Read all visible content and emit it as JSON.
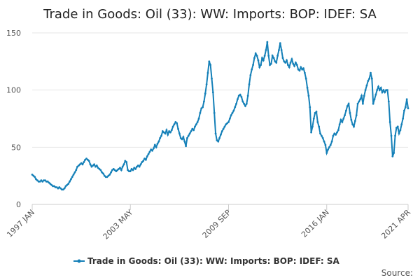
{
  "chart_data": {
    "type": "line",
    "title": "Trade in Goods: Oil (33): WW: Imports: BOP: IDEF: SA",
    "source_label": "Source:",
    "categories": [
      "1997 JAN",
      null,
      null,
      null,
      null,
      null,
      null,
      null,
      null,
      null,
      null,
      null,
      null,
      null,
      null,
      null,
      null,
      null,
      null,
      null,
      null,
      null,
      null,
      null,
      null,
      null,
      null,
      null,
      null,
      null,
      null,
      null,
      null,
      null,
      null,
      null,
      null,
      null,
      null,
      null,
      null,
      null,
      null,
      null,
      null,
      null,
      null,
      null,
      null,
      null,
      null,
      null,
      null,
      null,
      null,
      null,
      null,
      null,
      null,
      null,
      null,
      null,
      null,
      null,
      null,
      null,
      null,
      null,
      null,
      null,
      null,
      null,
      null,
      null,
      null,
      null,
      "2003 MAY",
      null,
      null,
      null,
      null,
      null,
      null,
      null,
      null,
      null,
      null,
      null,
      null,
      null,
      null,
      null,
      null,
      null,
      null,
      null,
      null,
      null,
      null,
      null,
      null,
      null,
      null,
      null,
      null,
      null,
      null,
      null,
      null,
      null,
      null,
      null,
      null,
      null,
      null,
      null,
      null,
      null,
      null,
      null,
      null,
      null,
      null,
      null,
      null,
      null,
      null,
      null,
      null,
      null,
      null,
      null,
      null,
      null,
      null,
      null,
      null,
      null,
      null,
      null,
      null,
      null,
      null,
      null,
      null,
      null,
      null,
      null,
      null,
      null,
      null,
      null,
      "2009 SEP",
      null,
      null,
      null,
      null,
      null,
      null,
      null,
      null,
      null,
      null,
      null,
      null,
      null,
      null,
      null,
      null,
      null,
      null,
      null,
      null,
      null,
      null,
      null,
      null,
      null,
      null,
      null,
      null,
      null,
      null,
      null,
      null,
      null,
      null,
      null,
      null,
      null,
      null,
      null,
      null,
      null,
      null,
      null,
      null,
      null,
      null,
      null,
      null,
      null,
      null,
      null,
      null,
      null,
      null,
      null,
      null,
      null,
      null,
      null,
      null,
      null,
      null,
      null,
      null,
      null,
      null,
      null,
      null,
      null,
      null,
      null,
      null,
      null,
      null,
      null,
      "2016 JAN",
      null,
      null,
      null,
      null,
      null,
      null,
      null,
      null,
      null,
      null,
      null,
      null,
      null,
      null,
      null,
      null,
      null,
      null,
      null,
      null,
      null,
      null,
      null,
      null,
      null,
      null,
      null,
      null,
      null,
      null,
      null,
      null,
      null,
      null,
      null,
      null,
      null,
      null,
      null,
      null,
      null,
      null,
      null,
      null,
      null,
      null,
      null,
      null,
      null,
      null,
      null,
      null,
      null,
      null,
      null,
      null,
      null,
      null,
      null,
      null,
      null,
      null,
      "2021 APR"
    ],
    "series": [
      {
        "name": "Trade in Goods: Oil (33): WW: Imports: BOP: IDEF: SA",
        "color": "#1580b8",
        "values": [
          26,
          25,
          24,
          22,
          21,
          20,
          20,
          21,
          20,
          21,
          21,
          20,
          20,
          19,
          18,
          17,
          16,
          16,
          15,
          15,
          14,
          15,
          14,
          13,
          13,
          14,
          16,
          17,
          18,
          20,
          22,
          24,
          26,
          28,
          30,
          33,
          34,
          35,
          36,
          35,
          37,
          39,
          40,
          39,
          38,
          35,
          33,
          34,
          35,
          33,
          34,
          32,
          31,
          30,
          28,
          27,
          25,
          24,
          24,
          25,
          26,
          28,
          30,
          31,
          30,
          29,
          30,
          31,
          32,
          30,
          33,
          35,
          38,
          37,
          30,
          29,
          29,
          31,
          30,
          32,
          31,
          33,
          34,
          33,
          35,
          37,
          38,
          40,
          39,
          42,
          44,
          46,
          48,
          47,
          49,
          52,
          50,
          53,
          55,
          58,
          60,
          64,
          63,
          62,
          65,
          61,
          64,
          63,
          65,
          68,
          70,
          72,
          71,
          66,
          62,
          58,
          57,
          59,
          55,
          51,
          58,
          60,
          62,
          64,
          66,
          65,
          68,
          70,
          72,
          75,
          80,
          84,
          85,
          90,
          97,
          105,
          115,
          125,
          122,
          110,
          98,
          80,
          62,
          56,
          55,
          58,
          61,
          64,
          66,
          68,
          70,
          71,
          72,
          75,
          78,
          80,
          82,
          85,
          88,
          92,
          95,
          96,
          94,
          90,
          88,
          86,
          88,
          95,
          105,
          113,
          118,
          122,
          128,
          132,
          130,
          126,
          120,
          122,
          128,
          126,
          130,
          135,
          142,
          130,
          122,
          123,
          130,
          128,
          125,
          124,
          130,
          135,
          141,
          135,
          128,
          125,
          124,
          126,
          122,
          120,
          124,
          127,
          123,
          121,
          124,
          122,
          118,
          117,
          120,
          118,
          119,
          115,
          110,
          102,
          95,
          85,
          63,
          68,
          75,
          80,
          81,
          72,
          68,
          62,
          60,
          58,
          55,
          52,
          45,
          48,
          50,
          52,
          55,
          60,
          62,
          61,
          63,
          65,
          70,
          74,
          72,
          75,
          78,
          82,
          86,
          88,
          80,
          74,
          70,
          68,
          73,
          78,
          88,
          90,
          92,
          95,
          88,
          95,
          100,
          104,
          108,
          110,
          115,
          110,
          88,
          92,
          96,
          100,
          103,
          100,
          102,
          98,
          100,
          98,
          100,
          100,
          90,
          72,
          60,
          42,
          45,
          60,
          67,
          68,
          62,
          65,
          70,
          75,
          82,
          85,
          92,
          84
        ]
      }
    ],
    "ylim": [
      0,
      150
    ],
    "yticks": [
      0,
      50,
      100,
      150
    ],
    "grid": true
  }
}
